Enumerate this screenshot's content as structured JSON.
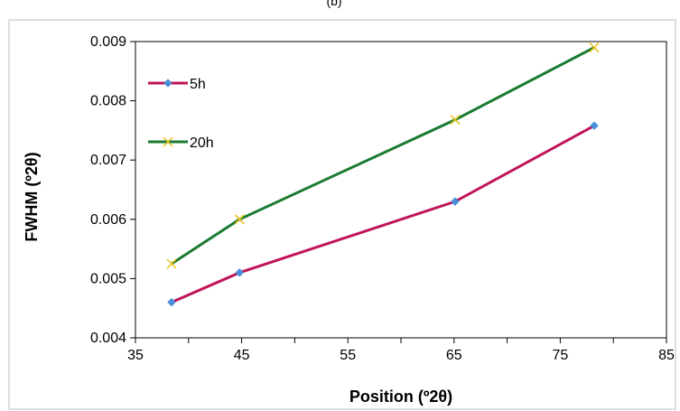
{
  "header_fragment": "(b)",
  "chart_data": {
    "type": "line",
    "title": "",
    "xlabel": "Position (º2θ)",
    "ylabel": "FWHM (º2θ)",
    "xlim": [
      35,
      85
    ],
    "ylim": [
      0.004,
      0.009
    ],
    "x_ticks": [
      "35",
      "45",
      "55",
      "65",
      "75",
      "85"
    ],
    "y_ticks": [
      "0.004",
      "0.005",
      "0.006",
      "0.007",
      "0.008",
      "0.009"
    ],
    "grid": false,
    "legend_position": "top-left",
    "series": [
      {
        "name": "5h",
        "color": "#c0145a",
        "marker": "diamond",
        "marker_color": "#4a90d9",
        "points": [
          {
            "x": 38.4,
            "y": 0.0046
          },
          {
            "x": 44.8,
            "y": 0.0051
          },
          {
            "x": 65.1,
            "y": 0.0063
          },
          {
            "x": 78.2,
            "y": 0.00758
          }
        ]
      },
      {
        "name": "20h",
        "color": "#1a7a2e",
        "marker": "x",
        "marker_color": "#e8c21a",
        "points": [
          {
            "x": 38.4,
            "y": 0.00525
          },
          {
            "x": 44.8,
            "y": 0.006
          },
          {
            "x": 65.1,
            "y": 0.00768
          },
          {
            "x": 78.2,
            "y": 0.0089
          }
        ]
      }
    ]
  }
}
